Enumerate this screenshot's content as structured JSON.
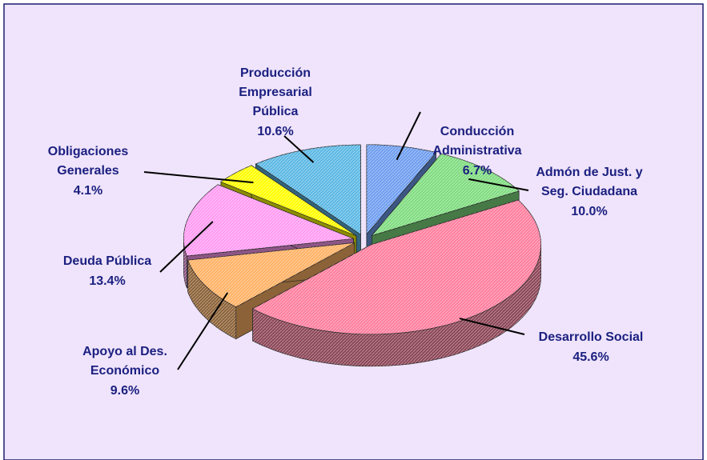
{
  "chart_data": {
    "type": "pie",
    "categories": [
      "Conducción Administrativa",
      "Admón de Just. y Seg. Ciudadana",
      "Desarrollo Social",
      "Apoyo al Des. Económico",
      "Deuda Pública",
      "Obligaciones Generales",
      "Producción Empresarial Pública"
    ],
    "values": [
      6.7,
      10.0,
      45.6,
      9.6,
      13.4,
      4.1,
      10.6
    ],
    "value_labels": [
      "6.7%",
      "10.0%",
      "45.6%",
      "9.6%",
      "13.4%",
      "4.1%",
      "10.6%"
    ],
    "colors": [
      "#6f9ef0",
      "#80dc80",
      "#ff7f9f",
      "#ffb266",
      "#ff9cf2",
      "#ffff00",
      "#5cb8e4"
    ]
  }
}
